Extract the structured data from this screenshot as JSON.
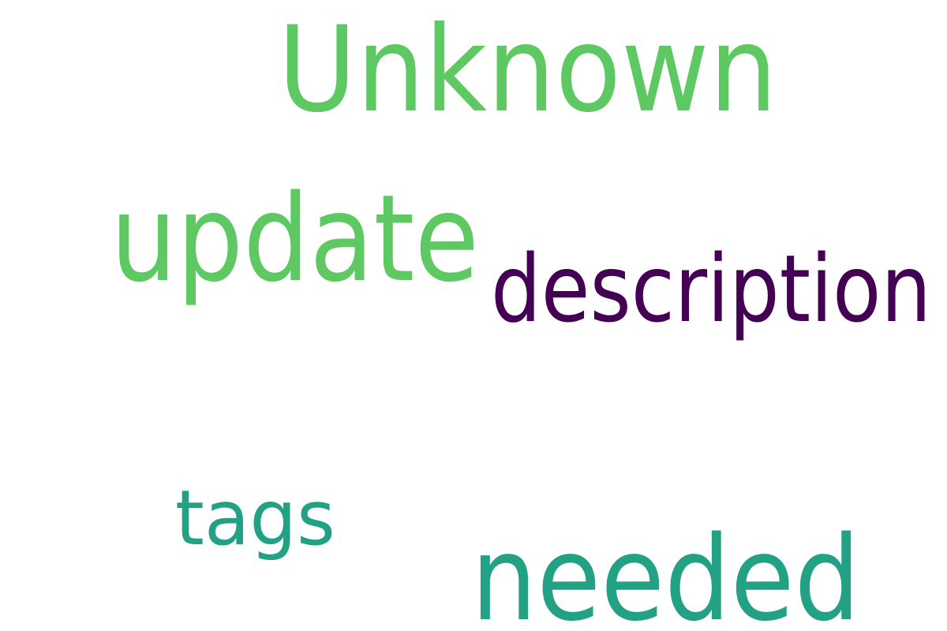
{
  "words": [
    {
      "text": "Unknown",
      "color": "#5ec962"
    },
    {
      "text": "update",
      "color": "#5ec962"
    },
    {
      "text": "description",
      "color": "#440154"
    },
    {
      "text": "tags",
      "color": "#22a185"
    },
    {
      "text": "needed",
      "color": "#22a185"
    }
  ]
}
